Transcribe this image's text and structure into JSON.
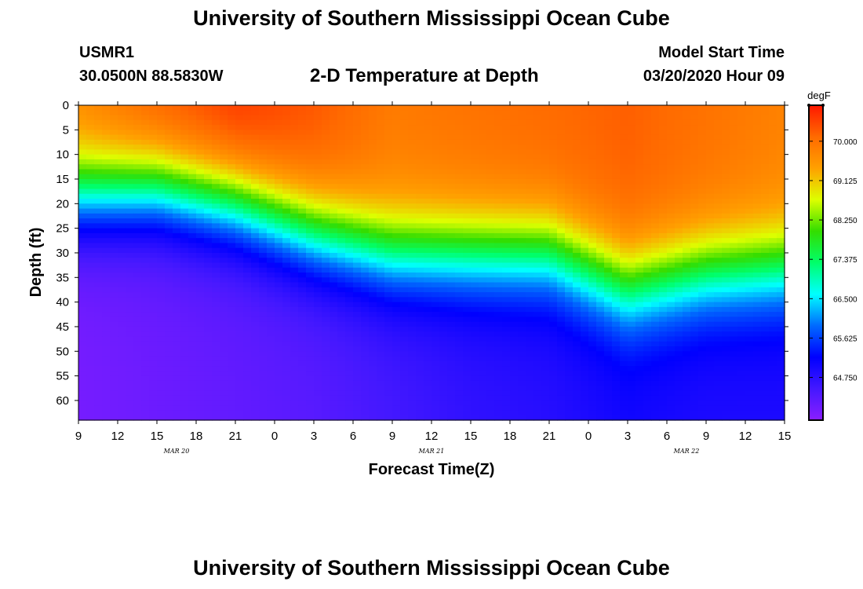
{
  "header": {
    "title": "University of Southern Mississippi Ocean Cube",
    "station": "USMR1",
    "coords": "30.0500N 88.5830W",
    "subtitle": "2-D Temperature at Depth",
    "start_label": "Model Start Time",
    "start_value": "03/20/2020 Hour 09"
  },
  "footer": {
    "title": "University of Southern Mississippi Ocean Cube"
  },
  "colors": {
    "background": "#ffffff",
    "axis": "#000000",
    "frame": "#000000"
  },
  "chart_data": {
    "type": "heatmap",
    "title": "2-D Temperature at Depth",
    "xlabel": "Forecast Time(Z)",
    "ylabel": "Depth (ft)",
    "x_range_hours": [
      0,
      54
    ],
    "x_tick_labels": [
      "9",
      "12",
      "15",
      "18",
      "21",
      "0",
      "3",
      "6",
      "9",
      "12",
      "15",
      "18",
      "21",
      "0",
      "3",
      "6",
      "9",
      "12",
      "15"
    ],
    "y_range": [
      0,
      64
    ],
    "y_ticks": [
      0,
      5,
      10,
      15,
      20,
      25,
      30,
      35,
      40,
      45,
      50,
      55,
      60
    ],
    "date_labels": [
      {
        "text": "MAR 20",
        "hour": 7.5
      },
      {
        "text": "MAR 21",
        "hour": 27
      },
      {
        "text": "MAR 22",
        "hour": 46.5
      }
    ],
    "colorbar": {
      "unit": "degF",
      "range": [
        63.8,
        70.8
      ],
      "tick_values": [
        70.0,
        69.125,
        68.25,
        67.375,
        66.5,
        65.625,
        64.75
      ],
      "tick_labels": [
        "70.000",
        "69.125",
        "68.250",
        "67.375",
        "66.500",
        "65.625",
        "64.750"
      ]
    },
    "profile_hours": [
      0,
      6,
      12,
      18,
      24,
      30,
      36,
      42,
      48,
      54
    ],
    "mixed_layer_depth_ft": [
      12,
      11,
      14,
      20,
      24,
      24,
      24,
      31,
      28,
      27
    ],
    "surface_temp_degF": [
      69.8,
      70.3,
      70.6,
      70.3,
      69.9,
      70.0,
      70.1,
      70.2,
      70.0,
      69.8
    ],
    "bottom_temp_degF": [
      64.0,
      64.1,
      64.2,
      64.3,
      64.5,
      64.7,
      64.8,
      65.0,
      64.9,
      64.9
    ]
  }
}
